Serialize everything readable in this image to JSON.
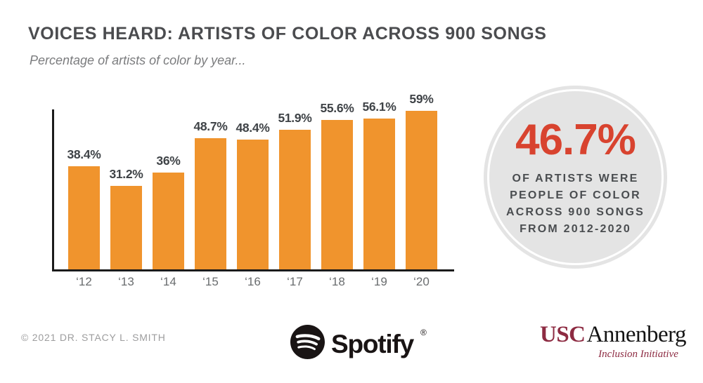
{
  "header": {
    "title": "VOICES HEARD: ARTISTS OF COLOR ACROSS 900 SONGS",
    "subtitle": "Percentage of artists of color by year..."
  },
  "chart_data": {
    "type": "bar",
    "title": "VOICES HEARD: ARTISTS OF COLOR ACROSS 900 SONGS",
    "subtitle": "Percentage of artists of color by year...",
    "categories": [
      "‘12",
      "‘13",
      "‘14",
      "‘15",
      "‘16",
      "‘17",
      "‘18",
      "‘19",
      "‘20"
    ],
    "values": [
      38.4,
      31.2,
      36,
      48.7,
      48.4,
      51.9,
      55.6,
      56.1,
      59
    ],
    "value_labels": [
      "38.4%",
      "31.2%",
      "36%",
      "48.7%",
      "48.4%",
      "51.9%",
      "55.6%",
      "56.1%",
      "59%"
    ],
    "xlabel": "",
    "ylabel": "",
    "ylim": [
      0,
      60
    ],
    "grid": false,
    "legend": "none",
    "bar_color": "#F0942D"
  },
  "callout": {
    "stat": "46.7%",
    "description": "OF ARTISTS WERE\nPEOPLE OF COLOR\nACROSS 900 SONGS\nFROM 2012-2020",
    "stat_color": "#D8432F",
    "circle_color": "#E4E4E4"
  },
  "footer": {
    "copyright": "© 2021 DR. STACY L. SMITH",
    "spotify": {
      "icon": "spotify-icon",
      "wordmark": "Spotify",
      "registered": "®",
      "color": "#191414"
    },
    "usc": {
      "usc": "USC",
      "annenberg": "Annenberg",
      "tagline": "Inclusion Initiative",
      "maroon": "#8D2B42"
    }
  }
}
